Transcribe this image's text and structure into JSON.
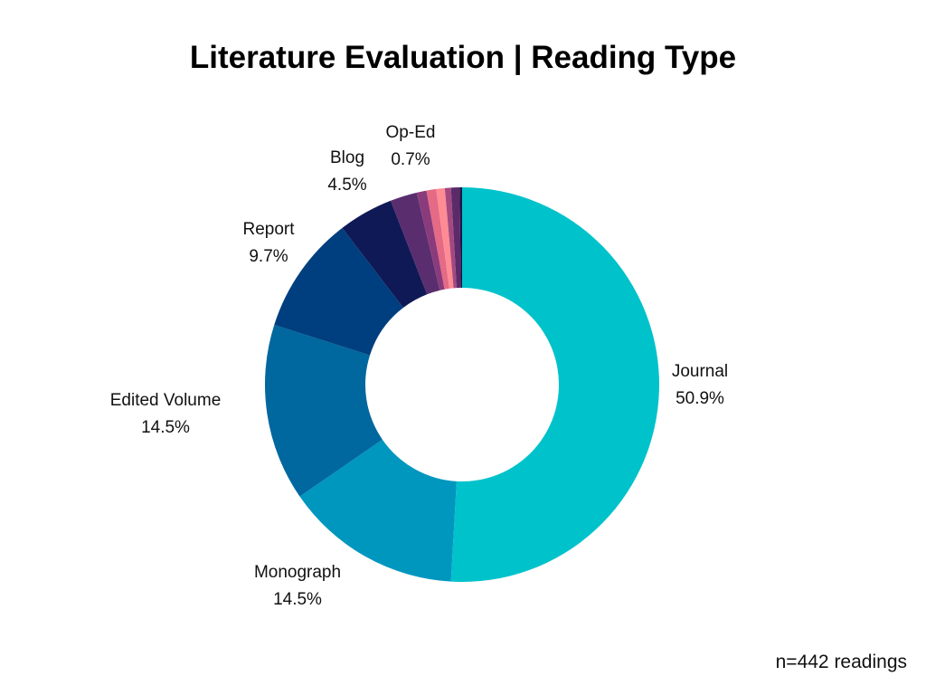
{
  "chart_data": {
    "type": "pie",
    "title": "Literature Evaluation | Reading Type",
    "note": "n=442 readings",
    "donut": true,
    "slices": [
      {
        "label": "Journal",
        "value": 50.9,
        "value_label": "50.9%",
        "color": "#00C2CB",
        "labeled": true
      },
      {
        "label": "Monograph",
        "value": 14.5,
        "value_label": "14.5%",
        "color": "#0097BF",
        "labeled": true
      },
      {
        "label": "Edited Volume",
        "value": 14.5,
        "value_label": "14.5%",
        "color": "#00679F",
        "labeled": true
      },
      {
        "label": "Report",
        "value": 9.7,
        "value_label": "9.7%",
        "color": "#003F7F",
        "labeled": true
      },
      {
        "label": "Blog",
        "value": 4.5,
        "value_label": "4.5%",
        "color": "#0F1956",
        "labeled": true
      },
      {
        "label": "",
        "value": 2.2,
        "value_label": "",
        "color": "#5A2D6E",
        "labeled": false
      },
      {
        "label": "",
        "value": 0.8,
        "value_label": "",
        "color": "#8A3B7C",
        "labeled": false
      },
      {
        "label": "",
        "value": 0.8,
        "value_label": "",
        "color": "#E46A85",
        "labeled": false
      },
      {
        "label": "",
        "value": 0.7,
        "value_label": "",
        "color": "#FF8C94",
        "labeled": false
      },
      {
        "label": "",
        "value": 0.5,
        "value_label": "",
        "color": "#A3497F",
        "labeled": false
      },
      {
        "label": "Op-Ed",
        "value": 0.7,
        "value_label": "0.7%",
        "color": "#5C2A6A",
        "labeled": true
      },
      {
        "label": "",
        "value": 0.2,
        "value_label": "",
        "color": "#1B1446",
        "labeled": false
      }
    ]
  }
}
